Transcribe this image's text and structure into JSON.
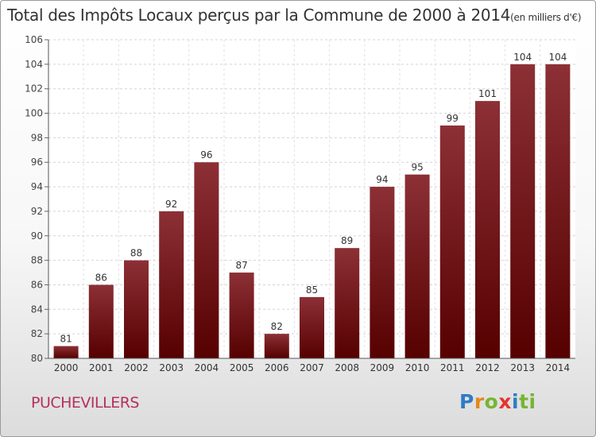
{
  "header": {
    "title": "Total des Impôts Locaux perçus par la Commune de 2000 à 2014",
    "unit": "(en milliers d'€)"
  },
  "commune": "PUCHEVILLERS",
  "logo": {
    "letters": [
      "P",
      "r",
      "o",
      "x",
      "i",
      "ti"
    ]
  },
  "colors": {
    "bar_top": "#8c3036",
    "bar_bottom": "#560000",
    "commune_text": "#b5305f"
  },
  "chart_data": {
    "type": "bar",
    "title": "Total des Impôts Locaux perçus par la Commune de 2000 à 2014",
    "xlabel": "",
    "ylabel": "",
    "categories": [
      "2000",
      "2001",
      "2002",
      "2003",
      "2004",
      "2005",
      "2006",
      "2007",
      "2008",
      "2009",
      "2010",
      "2011",
      "2012",
      "2013",
      "2014"
    ],
    "values": [
      81,
      86,
      88,
      92,
      96,
      87,
      82,
      85,
      89,
      94,
      95,
      99,
      101,
      104,
      104
    ],
    "data_labels": [
      "81",
      "86",
      "88",
      "92",
      "96",
      "87",
      "82",
      "85",
      "89",
      "94",
      "95",
      "99",
      "101",
      "104",
      "104"
    ],
    "ylim": [
      80,
      106
    ],
    "yticks": [
      80,
      82,
      84,
      86,
      88,
      90,
      92,
      94,
      96,
      98,
      100,
      102,
      104,
      106
    ],
    "ytick_labels": [
      "80",
      "82",
      "84",
      "86",
      "88",
      "90",
      "92",
      "94",
      "96",
      "98",
      "100",
      "102",
      "104",
      "106"
    ],
    "grid": true
  }
}
